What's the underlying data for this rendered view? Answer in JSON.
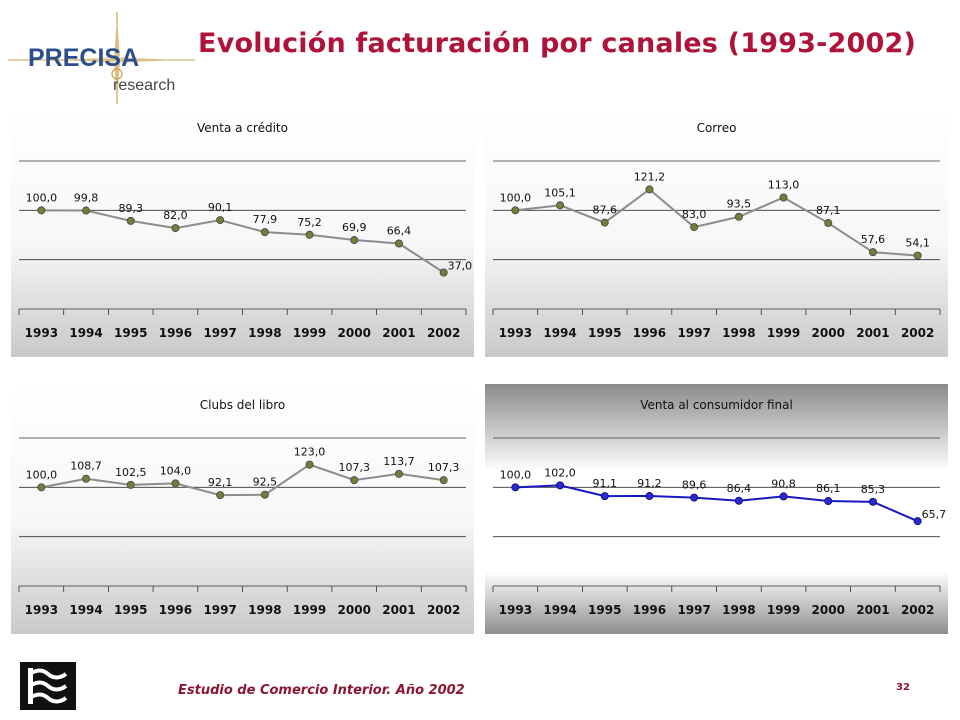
{
  "brand": {
    "name": "PRECISA",
    "sub": "research"
  },
  "title": "Evolución facturación por canales (1993-2002)",
  "footer": {
    "text": "Estudio de Comercio Interior. Año 2002",
    "page": "32"
  },
  "colors": {
    "title": "#b0133a",
    "brand_blue": "#2a4f8c",
    "brand_gold": "#c8a04a",
    "footer_red": "#8e1530",
    "series_grey": "#8c8c8c",
    "marker_olive": "#7a7a3a",
    "series_blue": "#1818c0"
  },
  "chart_data": [
    {
      "type": "line",
      "title": "Venta a crédito",
      "categories": [
        "1993",
        "1994",
        "1995",
        "1996",
        "1997",
        "1998",
        "1999",
        "2000",
        "2001",
        "2002"
      ],
      "labels": [
        "100,0",
        "99,8",
        "89,3",
        "82,0",
        "90,1",
        "77,9",
        "75,2",
        "69,9",
        "66,4",
        "37,0"
      ],
      "values": [
        100.0,
        99.8,
        89.3,
        82.0,
        90.1,
        77.9,
        75.2,
        69.9,
        66.4,
        37.0
      ],
      "ylim": [
        0,
        150
      ],
      "grid": true,
      "legend": "none"
    },
    {
      "type": "line",
      "title": "Correo",
      "categories": [
        "1993",
        "1994",
        "1995",
        "1996",
        "1997",
        "1998",
        "1999",
        "2000",
        "2001",
        "2002"
      ],
      "labels": [
        "100,0",
        "105,1",
        "87,6",
        "121,2",
        "83,0",
        "93,5",
        "113,0",
        "87,1",
        "57,6",
        "54,1"
      ],
      "values": [
        100.0,
        105.1,
        87.6,
        121.2,
        83.0,
        93.5,
        113.0,
        87.1,
        57.6,
        54.1
      ],
      "ylim": [
        0,
        150
      ],
      "grid": true,
      "legend": "none"
    },
    {
      "type": "line",
      "title": "Clubs del libro",
      "categories": [
        "1993",
        "1994",
        "1995",
        "1996",
        "1997",
        "1998",
        "1999",
        "2000",
        "2001",
        "2002"
      ],
      "labels": [
        "100,0",
        "108,7",
        "102,5",
        "104,0",
        "92,1",
        "92,5",
        "123,0",
        "107,3",
        "113,7",
        "107,3"
      ],
      "values": [
        100.0,
        108.7,
        102.5,
        104.0,
        92.1,
        92.5,
        123.0,
        107.3,
        113.7,
        107.3
      ],
      "ylim": [
        0,
        150
      ],
      "grid": true,
      "legend": "none"
    },
    {
      "type": "line",
      "title": "Venta al consumidor final",
      "categories": [
        "1993",
        "1994",
        "1995",
        "1996",
        "1997",
        "1998",
        "1999",
        "2000",
        "2001",
        "2002"
      ],
      "labels": [
        "100,0",
        "102,0",
        "91,1",
        "91,2",
        "89,6",
        "86,4",
        "90,8",
        "86,1",
        "85,3",
        "65,7"
      ],
      "values": [
        100.0,
        102.0,
        91.1,
        91.2,
        89.6,
        86.4,
        90.8,
        86.1,
        85.3,
        65.7
      ],
      "ylim": [
        0,
        150
      ],
      "grid": true,
      "legend": "none"
    }
  ]
}
